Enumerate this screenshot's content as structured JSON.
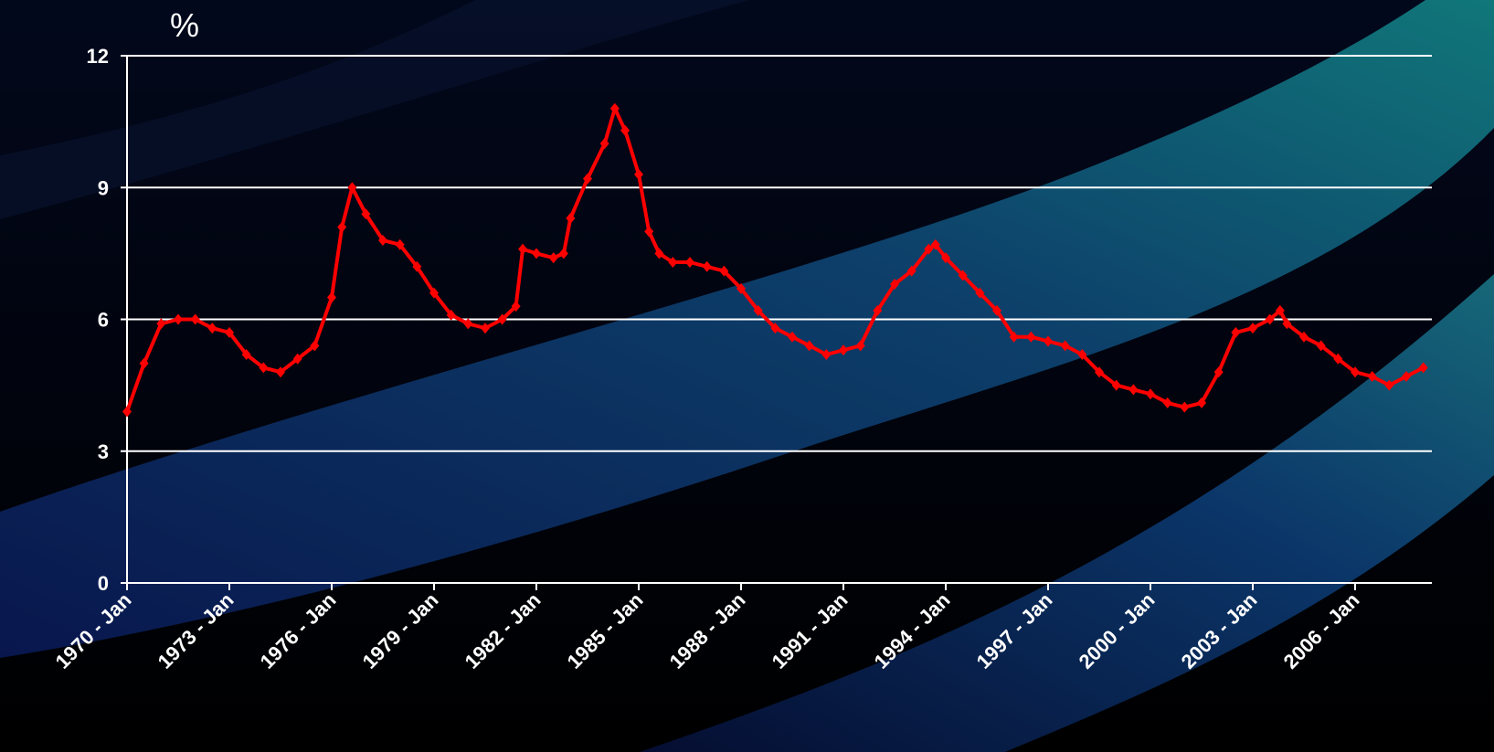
{
  "chart_data": {
    "type": "line",
    "y_label": "%",
    "color": "#ff0000",
    "grid": true,
    "x": [
      1970.0,
      1970.5,
      1971.0,
      1971.5,
      1972.0,
      1972.5,
      1973.0,
      1973.5,
      1974.0,
      1974.5,
      1975.0,
      1975.5,
      1976.0,
      1976.3,
      1976.6,
      1977.0,
      1977.5,
      1978.0,
      1978.5,
      1979.0,
      1979.5,
      1980.0,
      1980.5,
      1981.0,
      1981.4,
      1981.6,
      1982.0,
      1982.5,
      1982.8,
      1983.0,
      1983.5,
      1984.0,
      1984.3,
      1984.6,
      1985.0,
      1985.3,
      1985.6,
      1986.0,
      1986.5,
      1987.0,
      1987.5,
      1988.0,
      1988.5,
      1989.0,
      1989.5,
      1990.0,
      1990.5,
      1991.0,
      1991.5,
      1992.0,
      1992.5,
      1993.0,
      1993.5,
      1993.7,
      1994.0,
      1994.5,
      1995.0,
      1995.5,
      1996.0,
      1996.5,
      1997.0,
      1997.5,
      1998.0,
      1998.5,
      1999.0,
      1999.5,
      2000.0,
      2000.5,
      2001.0,
      2001.5,
      2002.0,
      2002.5,
      2003.0,
      2003.5,
      2003.8,
      2004.0,
      2004.5,
      2005.0,
      2005.5,
      2006.0,
      2006.5,
      2007.0,
      2007.5,
      2008.0
    ],
    "values": [
      3.9,
      5.0,
      5.9,
      6.0,
      6.0,
      5.8,
      5.7,
      5.2,
      4.9,
      4.8,
      5.1,
      5.4,
      6.5,
      8.1,
      9.0,
      8.4,
      7.8,
      7.7,
      7.2,
      6.6,
      6.1,
      5.9,
      5.8,
      6.0,
      6.3,
      7.6,
      7.5,
      7.4,
      7.5,
      8.3,
      9.2,
      10.0,
      10.8,
      10.3,
      9.3,
      8.0,
      7.5,
      7.3,
      7.3,
      7.2,
      7.1,
      6.7,
      6.2,
      5.8,
      5.6,
      5.4,
      5.2,
      5.3,
      5.4,
      6.2,
      6.8,
      7.1,
      7.6,
      7.7,
      7.4,
      7.0,
      6.6,
      6.2,
      5.6,
      5.6,
      5.5,
      5.4,
      5.2,
      4.8,
      4.5,
      4.4,
      4.3,
      4.1,
      4.0,
      4.1,
      4.8,
      5.7,
      5.8,
      6.0,
      6.2,
      5.9,
      5.6,
      5.4,
      5.1,
      4.8,
      4.7,
      4.5,
      4.7,
      4.9
    ],
    "xlim": [
      1970,
      2008.25
    ],
    "xticks": [
      {
        "value": 1970,
        "label": "1970 - Jan"
      },
      {
        "value": 1973,
        "label": "1973 - Jan"
      },
      {
        "value": 1976,
        "label": "1976 - Jan"
      },
      {
        "value": 1979,
        "label": "1979 - Jan"
      },
      {
        "value": 1982,
        "label": "1982 - Jan"
      },
      {
        "value": 1985,
        "label": "1985 - Jan"
      },
      {
        "value": 1988,
        "label": "1988 - Jan"
      },
      {
        "value": 1991,
        "label": "1991 - Jan"
      },
      {
        "value": 1994,
        "label": "1994 - Jan"
      },
      {
        "value": 1997,
        "label": "1997 - Jan"
      },
      {
        "value": 2000,
        "label": "2000 - Jan"
      },
      {
        "value": 2003,
        "label": "2003 - Jan"
      },
      {
        "value": 2006,
        "label": "2006 - Jan"
      }
    ],
    "ylim": [
      0,
      12
    ],
    "yticks": [
      0,
      3,
      6,
      9,
      12
    ]
  }
}
